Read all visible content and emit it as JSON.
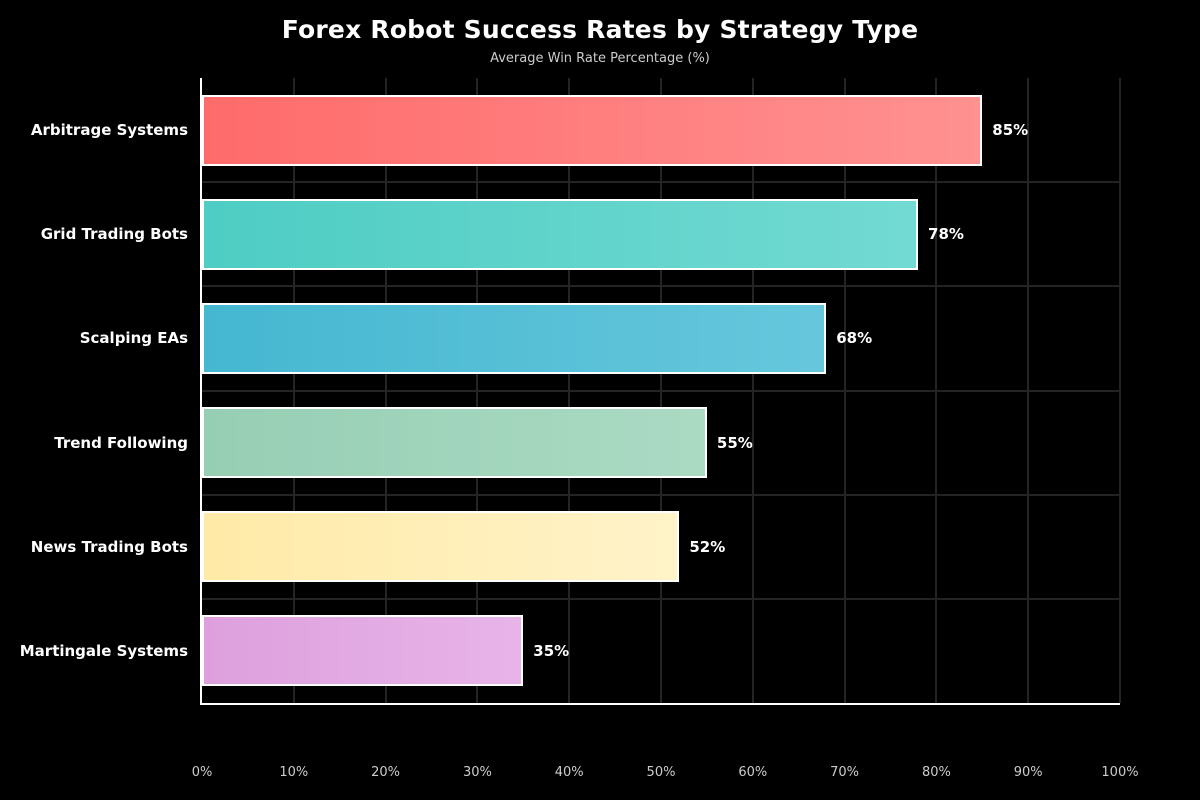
{
  "chart_data": {
    "type": "bar",
    "orientation": "horizontal",
    "title": "Forex Robot Success Rates by Strategy Type",
    "subtitle": "Average Win Rate Percentage (%)",
    "categories": [
      "Arbitrage Systems",
      "Grid Trading Bots",
      "Scalping EAs",
      "Trend Following",
      "News Trading Bots",
      "Martingale Systems"
    ],
    "values": [
      85,
      78,
      68,
      55,
      52,
      35
    ],
    "value_labels": [
      "85%",
      "78%",
      "68%",
      "55%",
      "52%",
      "35%"
    ],
    "bar_gradients": [
      [
        "#ff6b6b",
        "#ff9191"
      ],
      [
        "#4ecdc4",
        "#72dad2"
      ],
      [
        "#45b7d1",
        "#66c7dc"
      ],
      [
        "#96ceb4",
        "#abdac3"
      ],
      [
        "#ffeaa7",
        "#fff3c9"
      ],
      [
        "#dda0dd",
        "#e8b4e8"
      ]
    ],
    "x_tick_labels": [
      "0%",
      "10%",
      "20%",
      "30%",
      "40%",
      "50%",
      "60%",
      "70%",
      "80%",
      "90%",
      "100%"
    ],
    "xlim": [
      0,
      100
    ],
    "grid": true,
    "legend": "none",
    "colors": {
      "background": "#000000",
      "axis": "#ffffff",
      "gridline": "#242424",
      "title_text": "#ffffff",
      "subtitle_text": "#cccccc",
      "tick_text": "#cccccc",
      "bar_border": "#ffffff",
      "value_text": "#ffffff"
    }
  }
}
